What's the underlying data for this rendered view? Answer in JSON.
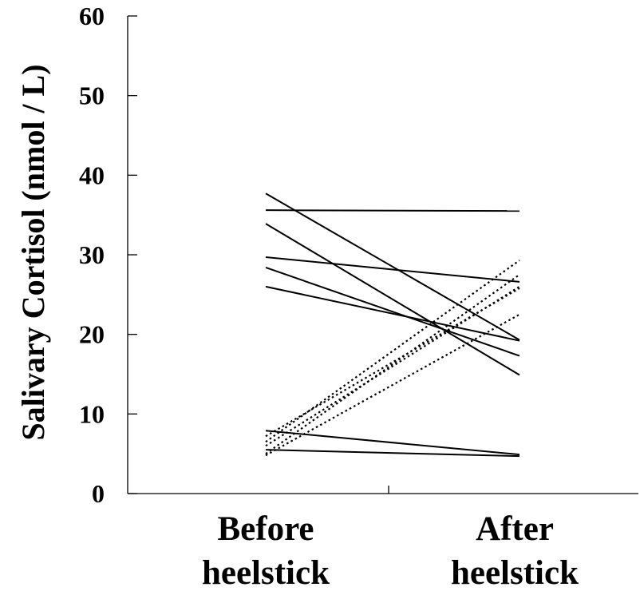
{
  "chart_data": {
    "type": "line",
    "ylabel": "Salivary Cortisol (nmol / L)",
    "categories": [
      [
        "Before",
        "heelstick"
      ],
      [
        "After",
        "heelstick"
      ]
    ],
    "ylim": [
      0,
      60
    ],
    "yticks": [
      0,
      10,
      20,
      30,
      40,
      50,
      60
    ],
    "grid": false,
    "series": [
      {
        "style": "solid",
        "values": [
          35.6,
          35.5
        ]
      },
      {
        "style": "solid",
        "values": [
          37.7,
          19.3
        ]
      },
      {
        "style": "solid",
        "values": [
          33.9,
          14.9
        ]
      },
      {
        "style": "solid",
        "values": [
          29.7,
          26.6
        ]
      },
      {
        "style": "solid",
        "values": [
          28.4,
          17.3
        ]
      },
      {
        "style": "solid",
        "values": [
          26.0,
          19.2
        ]
      },
      {
        "style": "solid",
        "values": [
          7.9,
          4.9
        ]
      },
      {
        "style": "solid",
        "values": [
          5.5,
          4.7
        ]
      },
      {
        "style": "dotted",
        "values": [
          6.5,
          29.3
        ]
      },
      {
        "style": "dotted",
        "values": [
          5.0,
          27.5
        ]
      },
      {
        "style": "dotted",
        "values": [
          7.2,
          25.8
        ]
      },
      {
        "style": "dotted",
        "values": [
          4.8,
          22.5
        ]
      },
      {
        "style": "dotted",
        "values": [
          6.0,
          26.0
        ]
      }
    ]
  }
}
